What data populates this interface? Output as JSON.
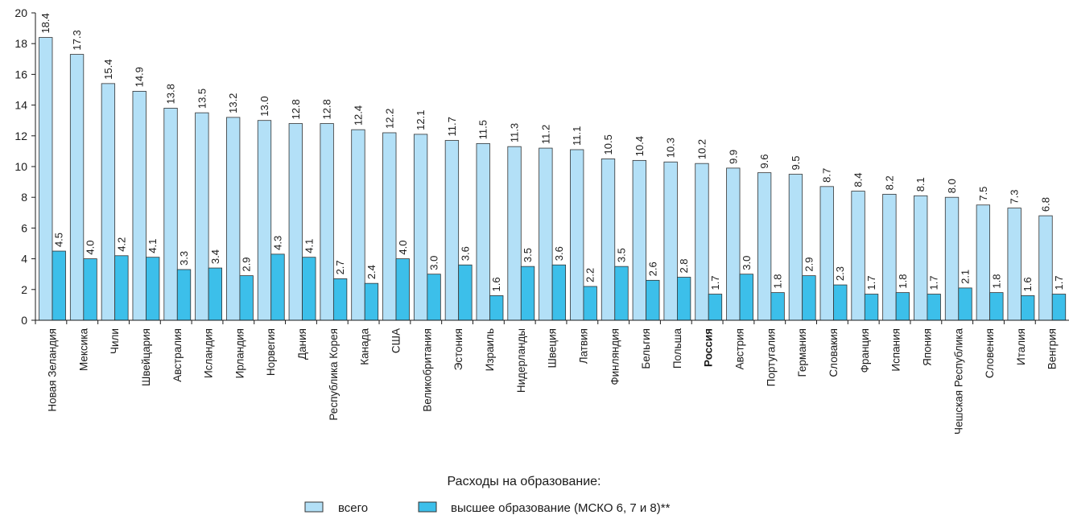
{
  "chart_data": {
    "type": "bar",
    "ylim": [
      0,
      20
    ],
    "yticks": [
      0,
      2,
      4,
      6,
      8,
      10,
      12,
      14,
      16,
      18,
      20
    ],
    "grid": false,
    "legend_placement": "bottom-center",
    "highlight_category": "Россия",
    "categories": [
      "Новая Зеландия",
      "Мексика",
      "Чили",
      "Швейцария",
      "Австралия",
      "Исландия",
      "Ирландия",
      "Норвегия",
      "Дания",
      "Республика Корея",
      "Канада",
      "США",
      "Великобритания",
      "Эстония",
      "Израиль",
      "Нидерланды",
      "Швеция",
      "Латвия",
      "Финляндия",
      "Бельгия",
      "Польша",
      "Россия",
      "Австрия",
      "Португалия",
      "Германия",
      "Словакия",
      "Франция",
      "Испания",
      "Япония",
      "Чешская Республика",
      "Словения",
      "Италия",
      "Венгрия"
    ],
    "series": [
      {
        "name": "всего",
        "color": "#b3e0f7",
        "values": [
          18.4,
          17.3,
          15.4,
          14.9,
          13.8,
          13.5,
          13.2,
          13.0,
          12.8,
          12.8,
          12.4,
          12.2,
          12.1,
          11.7,
          11.5,
          11.3,
          11.2,
          11.1,
          10.5,
          10.4,
          10.3,
          10.2,
          9.9,
          9.6,
          9.5,
          8.7,
          8.4,
          8.2,
          8.1,
          8.0,
          7.5,
          7.3,
          6.8
        ]
      },
      {
        "name": "высшее образование (МСКО 6, 7 и 8)**",
        "color": "#3cbfea",
        "values": [
          4.5,
          4.0,
          4.2,
          4.1,
          3.3,
          3.4,
          2.9,
          4.3,
          4.1,
          2.7,
          2.4,
          4.0,
          3.0,
          3.6,
          1.6,
          3.5,
          3.6,
          2.2,
          3.5,
          2.6,
          2.8,
          1.7,
          3.0,
          1.8,
          2.9,
          2.3,
          1.7,
          1.8,
          1.7,
          2.1,
          1.8,
          1.6,
          1.7
        ]
      }
    ],
    "legend_title": "Расходы  на образование:"
  }
}
